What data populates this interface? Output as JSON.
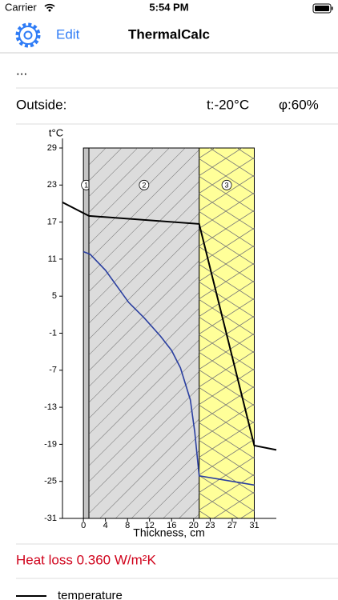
{
  "status_bar": {
    "carrier": "Carrier",
    "time": "5:54 PM"
  },
  "nav": {
    "edit": "Edit",
    "title": "ThermalCalc"
  },
  "rows": {
    "more": "...",
    "outside": "Outside:",
    "temperature": "t:-20°C",
    "humidity": "φ:60%"
  },
  "heat_loss": "Heat loss 0.360 W/m²K",
  "chart_data": {
    "type": "line",
    "ylabel": "t°C",
    "xlabel": "Thickness, cm",
    "xlim": [
      -3.8,
      35
    ],
    "ylim": [
      -31,
      29
    ],
    "xticks": [
      0,
      4,
      8,
      12,
      16,
      20,
      23,
      27,
      31
    ],
    "yticks": [
      29,
      23,
      17,
      11,
      5,
      -1,
      -7,
      -13,
      -19,
      -25,
      -31
    ],
    "layers": [
      {
        "label": "1",
        "from": 0,
        "to": 1,
        "color": "#c4c4c4",
        "pattern": "none"
      },
      {
        "label": "2",
        "from": 1,
        "to": 21,
        "color": "#dcdcdc",
        "pattern": "hatch"
      },
      {
        "label": "3",
        "from": 21,
        "to": 31,
        "color": "#ffff99",
        "pattern": "insulation"
      }
    ],
    "series": [
      {
        "name": "temperature",
        "color": "#000000",
        "x": [
          -3.8,
          1,
          21,
          31,
          35
        ],
        "values": [
          20.2,
          18.0,
          16.7,
          -19.2,
          -19.9
        ]
      },
      {
        "color": "#2a3fa0",
        "x": [
          0,
          1.2,
          4,
          8.2,
          11,
          14,
          16,
          17.6,
          19.4,
          20.2,
          21,
          31
        ],
        "values": [
          12.2,
          11.8,
          9.2,
          4.0,
          1.5,
          -1.5,
          -3.8,
          -6.6,
          -11.8,
          -17,
          -24.1,
          -25.6
        ]
      }
    ]
  }
}
